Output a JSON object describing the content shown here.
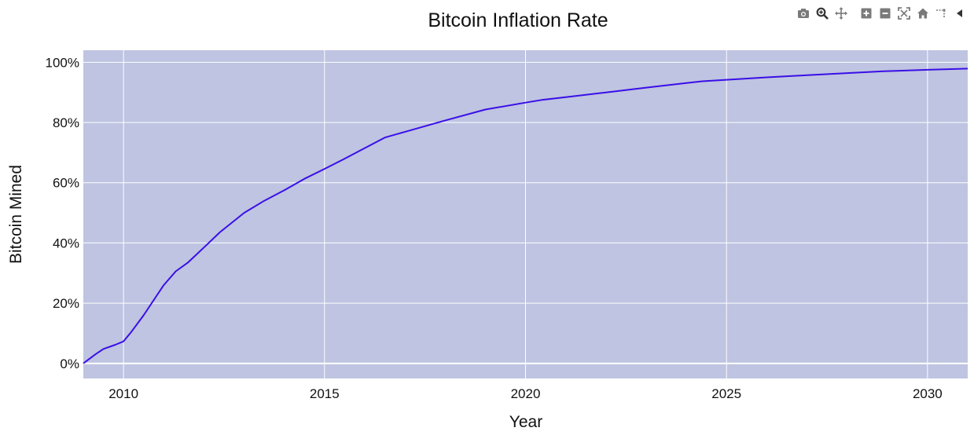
{
  "chart_data": {
    "type": "line",
    "title": "Bitcoin Inflation Rate",
    "xlabel": "Year",
    "ylabel": "Bitcoin Mined",
    "xlim": [
      2009.0,
      2031.0
    ],
    "ylim": [
      -5,
      104
    ],
    "x_ticks": [
      2010,
      2015,
      2020,
      2025,
      2030
    ],
    "x_tick_labels": [
      "2010",
      "2015",
      "2020",
      "2025",
      "2030"
    ],
    "y_ticks": [
      0,
      20,
      40,
      60,
      80,
      100
    ],
    "y_tick_labels": [
      "0%",
      "20%",
      "40%",
      "60%",
      "80%",
      "100%"
    ],
    "grid": true,
    "colors": {
      "plot_background": "#bec4e1",
      "grid": "#ffffff",
      "line": "#3a0ee8",
      "modebar_icon": "#7a7a7a"
    },
    "series": [
      {
        "x": [
          2009.0,
          2009.3,
          2009.5,
          2009.8,
          2010.0,
          2010.2,
          2010.5,
          2010.8,
          2011.0,
          2011.3,
          2011.6,
          2012.0,
          2012.4,
          2013.0,
          2013.5,
          2014.0,
          2014.5,
          2015.0,
          2015.5,
          2016.0,
          2016.5,
          2017.0,
          2018.0,
          2019.0,
          2020.0,
          2020.4,
          2021.0,
          2022.0,
          2023.0,
          2024.0,
          2024.4,
          2025.0,
          2026.0,
          2027.0,
          2028.0,
          2028.9,
          2030.0,
          2031.0
        ],
        "y": [
          0.0,
          3.0,
          4.8,
          6.2,
          7.3,
          10.6,
          16.0,
          22.0,
          26.0,
          30.6,
          33.5,
          38.5,
          43.6,
          50.0,
          54.0,
          57.5,
          61.3,
          64.6,
          68.0,
          71.5,
          75.0,
          76.9,
          80.7,
          84.3,
          86.6,
          87.5,
          88.4,
          90.0,
          91.6,
          93.1,
          93.7,
          94.2,
          95.0,
          95.7,
          96.4,
          97.0,
          97.5,
          97.9
        ]
      }
    ]
  },
  "modebar": {
    "icons": [
      "camera-icon",
      "zoom-icon",
      "pan-icon",
      "zoom-in-icon",
      "zoom-out-icon",
      "autoscale-icon",
      "home-icon",
      "spike-lines-icon",
      "hover-closest-icon"
    ]
  }
}
